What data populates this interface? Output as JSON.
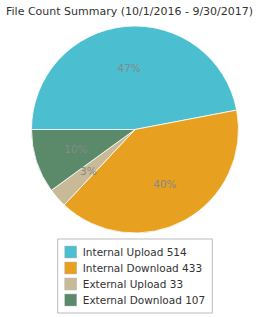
{
  "chart_data": {
    "type": "pie",
    "title": "File Count Summary (10/1/2016 - 9/30/2017)",
    "categories": [
      "Internal Upload 514",
      "Internal Download 433",
      "External Upload 33",
      "External Download 107"
    ],
    "values": [
      47,
      40,
      3,
      10
    ],
    "value_labels": [
      "47%",
      "40%",
      "3%",
      "10%"
    ],
    "colors": [
      "#4BBFCF",
      "#E8A020",
      "#C8BA96",
      "#5A8A6A"
    ],
    "data_labels": true,
    "legend": "bottom"
  }
}
